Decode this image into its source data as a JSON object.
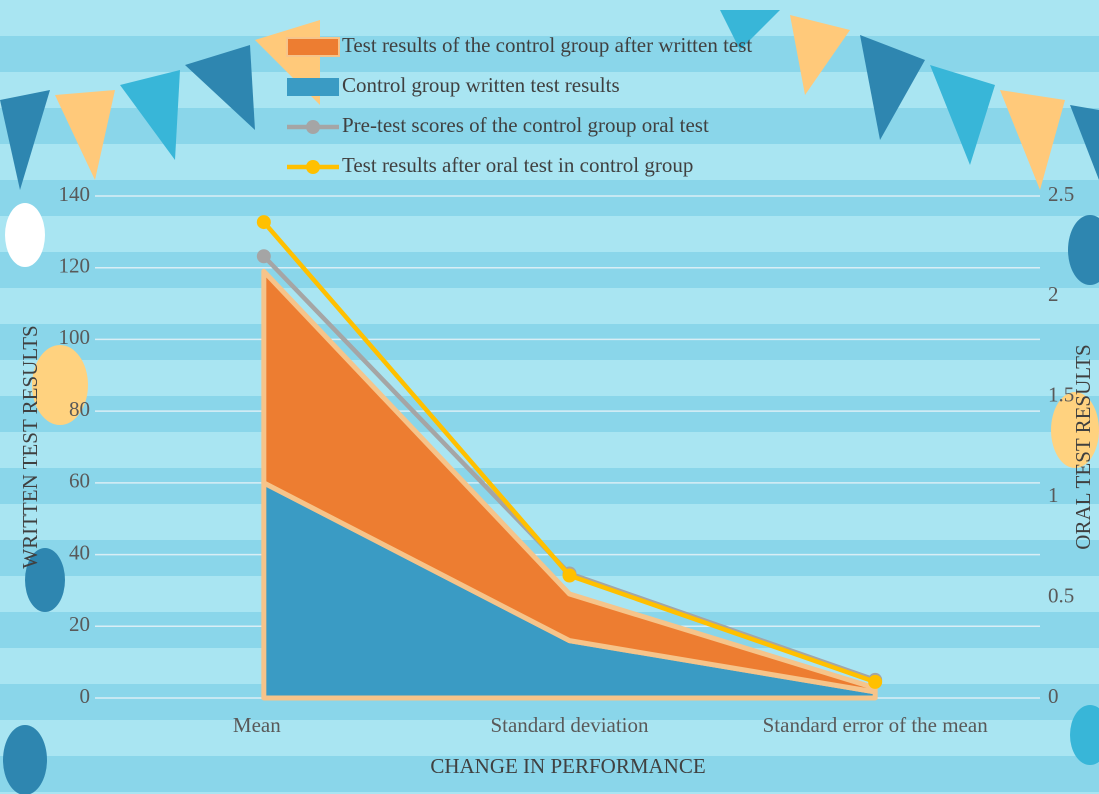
{
  "chart_data": {
    "type": "area",
    "categories": [
      "Mean",
      "Standard deviation",
      "Standard error of the mean"
    ],
    "series": [
      {
        "name": "Control group written test results",
        "type": "area",
        "color": "#3a9bc4",
        "values": [
          60,
          16,
          1.7
        ]
      },
      {
        "name": "Test results of the control group after written test",
        "type": "area",
        "color": "#ed7d31",
        "values": [
          59,
          13,
          1.1
        ]
      },
      {
        "name": "Pre-test scores of the control group oral test",
        "type": "line",
        "axis": "y2",
        "color": "#a5a5a5",
        "values": [
          2.2,
          0.62,
          0.09
        ]
      },
      {
        "name": "Test results after oral test in control group",
        "type": "line",
        "axis": "y2",
        "color": "#ffc000",
        "values": [
          2.37,
          0.61,
          0.08
        ]
      }
    ],
    "ylim": [
      0,
      140
    ],
    "yticks": [
      0,
      20,
      40,
      60,
      80,
      100,
      120,
      140
    ],
    "y2lim": [
      0,
      2.5
    ],
    "y2ticks": [
      0,
      0.5,
      1,
      1.5,
      2,
      2.5
    ],
    "xlabel": "CHANGE IN PERFORMANCE",
    "ylabel": "WRITTEN TEST RESULTS",
    "y2label": "ORAL TEST RESULTS",
    "grid": true,
    "legend": "top"
  }
}
